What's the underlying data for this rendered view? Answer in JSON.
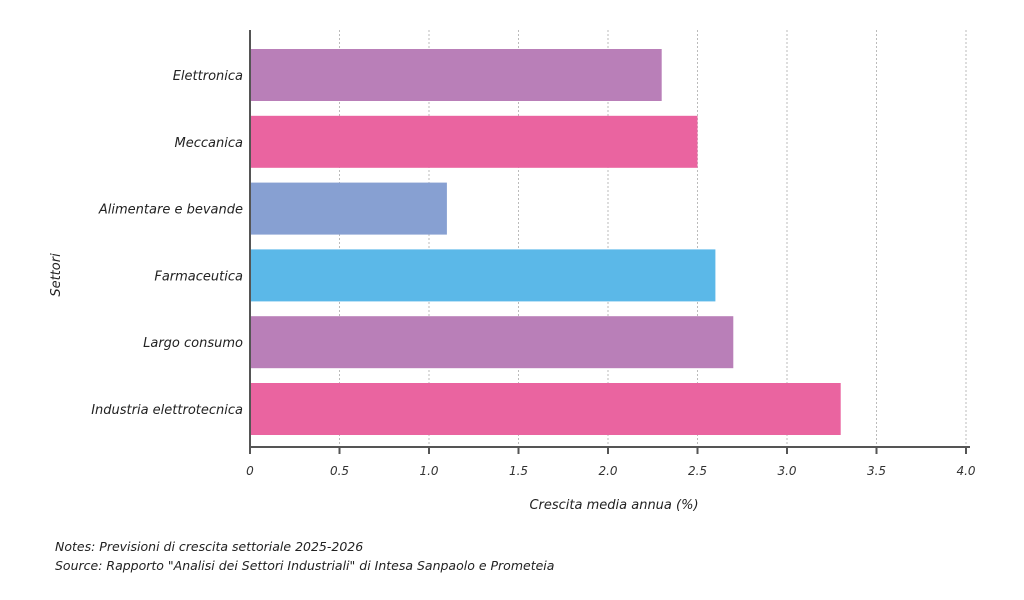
{
  "chart_data": {
    "type": "bar",
    "orientation": "horizontal",
    "categories": [
      "Elettronica",
      "Meccanica",
      "Alimentare e bevande",
      "Farmaceutica",
      "Largo consumo",
      "Industria elettrotecnica"
    ],
    "values": [
      2.3,
      2.5,
      1.1,
      2.6,
      2.7,
      3.3
    ],
    "colors": [
      "#b97fb8",
      "#ea64a0",
      "#87a0d2",
      "#5bb8e8",
      "#b97fb8",
      "#ea64a0"
    ],
    "xlabel": "Crescita media annua (%)",
    "ylabel": "Settori",
    "xlim": [
      0,
      4.0
    ],
    "xticks": [
      "0",
      "0.5",
      "1.0",
      "1.5",
      "2.0",
      "2.5",
      "3.0",
      "3.5",
      "4.0"
    ],
    "grid": "vertical dotted"
  },
  "notes": "Notes: Previsioni di crescita settoriale 2025-2026",
  "source": "Source: Rapporto \"Analisi dei Settori Industriali\" di Intesa Sanpaolo e Prometeia"
}
